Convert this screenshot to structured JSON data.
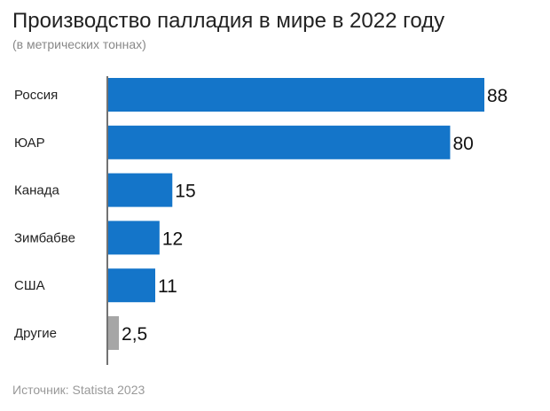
{
  "chart_data": {
    "type": "bar",
    "orientation": "horizontal",
    "title": "Производство палладия в мире в 2022 году",
    "subtitle": "(в метрических тоннах)",
    "categories": [
      "Россия",
      "ЮАР",
      "Канада",
      "Зимбабве",
      "США",
      "Другие"
    ],
    "values": [
      88,
      80,
      15,
      12,
      11,
      2.5
    ],
    "value_labels": [
      "88",
      "80",
      "15",
      "12",
      "11",
      "2,5"
    ],
    "colors": [
      "#1475c9",
      "#1475c9",
      "#1475c9",
      "#1475c9",
      "#1475c9",
      "#a6a6a6"
    ],
    "xlim": [
      0,
      88
    ],
    "grid": false,
    "source": "Источник: Statista 2023"
  }
}
